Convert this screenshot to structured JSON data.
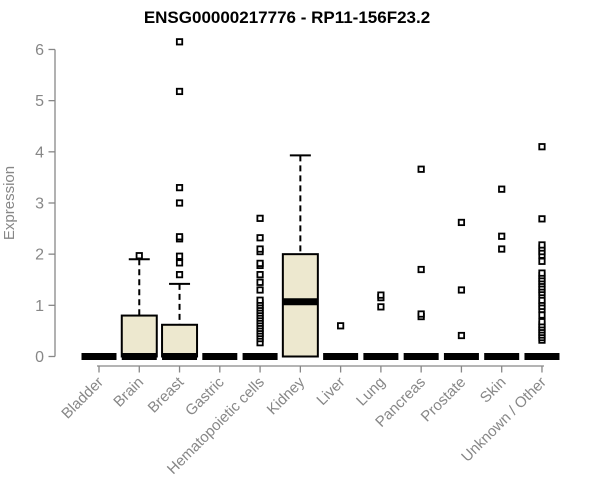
{
  "chart_data": {
    "type": "boxplot",
    "title": "ENSG00000217776 - RP11-156F23.2",
    "ylabel": "Expression",
    "ylim": [
      0,
      6
    ],
    "yticks": [
      0,
      1,
      2,
      3,
      4,
      5,
      6
    ],
    "grid": false,
    "legend": null,
    "categories": [
      "Bladder",
      "Brain",
      "Breast",
      "Gastric",
      "Hematopoietic cells",
      "Kidney",
      "Liver",
      "Lung",
      "Pancreas",
      "Prostate",
      "Skin",
      "Unknown / Other"
    ],
    "boxes": [
      {
        "category": "Bladder",
        "q1": 0,
        "median": 0,
        "q3": 0,
        "whisker_low": 0,
        "whisker_high": 0,
        "outliers": []
      },
      {
        "category": "Brain",
        "q1": 0,
        "median": 0,
        "q3": 0.8,
        "whisker_low": 0,
        "whisker_high": 1.9,
        "outliers": [
          1.97
        ]
      },
      {
        "category": "Breast",
        "q1": 0,
        "median": 0,
        "q3": 0.62,
        "whisker_low": 0,
        "whisker_high": 1.42,
        "outliers": [
          1.6,
          1.83,
          1.96,
          2.3,
          2.34,
          3.0,
          3.3,
          5.18,
          6.15
        ]
      },
      {
        "category": "Gastric",
        "q1": 0,
        "median": 0,
        "q3": 0,
        "whisker_low": 0,
        "whisker_high": 0,
        "outliers": []
      },
      {
        "category": "Hematopoietic cells",
        "q1": 0,
        "median": 0,
        "q3": 0,
        "whisker_low": 0,
        "whisker_high": 0,
        "outliers": [
          0.27,
          0.35,
          0.4,
          0.45,
          0.5,
          0.55,
          0.6,
          0.65,
          0.7,
          0.75,
          0.8,
          0.85,
          0.9,
          0.95,
          1.0,
          1.05,
          1.1,
          1.3,
          1.45,
          1.6,
          1.78,
          1.82,
          2.05,
          2.1,
          2.32,
          2.7
        ]
      },
      {
        "category": "Kidney",
        "q1": 0,
        "median": 1.07,
        "q3": 2.0,
        "whisker_low": 0,
        "whisker_high": 3.93,
        "outliers": []
      },
      {
        "category": "Liver",
        "q1": 0,
        "median": 0,
        "q3": 0,
        "whisker_low": 0,
        "whisker_high": 0,
        "outliers": [
          0.6
        ]
      },
      {
        "category": "Lung",
        "q1": 0,
        "median": 0,
        "q3": 0,
        "whisker_low": 0,
        "whisker_high": 0,
        "outliers": [
          0.97,
          1.15,
          1.2
        ]
      },
      {
        "category": "Pancreas",
        "q1": 0,
        "median": 0,
        "q3": 0,
        "whisker_low": 0,
        "whisker_high": 0,
        "outliers": [
          0.78,
          0.83,
          1.7,
          3.66
        ]
      },
      {
        "category": "Prostate",
        "q1": 0,
        "median": 0,
        "q3": 0,
        "whisker_low": 0,
        "whisker_high": 0,
        "outliers": [
          0.41,
          1.3,
          2.62
        ]
      },
      {
        "category": "Skin",
        "q1": 0,
        "median": 0,
        "q3": 0,
        "whisker_low": 0,
        "whisker_high": 0,
        "outliers": [
          2.1,
          2.35,
          3.27
        ]
      },
      {
        "category": "Unknown / Other",
        "q1": 0,
        "median": 0,
        "q3": 0,
        "whisker_low": 0,
        "whisker_high": 0,
        "outliers": [
          0.32,
          0.37,
          0.42,
          0.47,
          0.52,
          0.57,
          0.62,
          0.68,
          0.81,
          0.92,
          0.98,
          1.05,
          1.1,
          1.2,
          1.25,
          1.31,
          1.36,
          1.42,
          1.47,
          1.52,
          1.58,
          1.63,
          1.86,
          1.98,
          2.05,
          2.12,
          2.18,
          2.69,
          4.1
        ]
      }
    ],
    "colors": {
      "box_fill": "#EDE8CF",
      "box_stroke": "#000000",
      "median": "#000000",
      "outlier_stroke": "#000000",
      "outlier_fill": "#ffffff",
      "axis": "#878787",
      "title": "#000000"
    }
  }
}
